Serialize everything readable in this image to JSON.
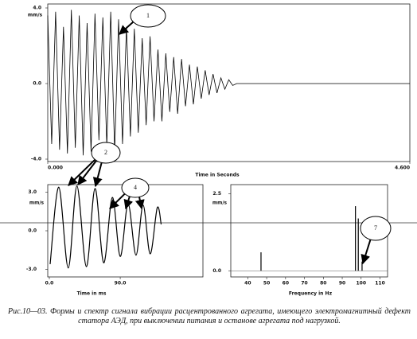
{
  "chart_data": [
    {
      "type": "line",
      "ylabel": "mm/s",
      "xlabel": "Time in Seconds",
      "annotations": [
        "1"
      ],
      "color": "#000000",
      "xlim": [
        0,
        4.6
      ],
      "xticks": [
        {
          "value": 0,
          "label": "0.000"
        },
        {
          "value": 4.6,
          "label": "4.600"
        }
      ],
      "ylim": [
        -4,
        4
      ],
      "yticks": [
        {
          "value": 4,
          "label": "4.0"
        },
        {
          "value": 0,
          "label": "0.0"
        },
        {
          "value": -4,
          "label": "-4.0"
        }
      ],
      "x": [
        0,
        0.05,
        0.1,
        0.15,
        0.2,
        0.25,
        0.3,
        0.35,
        0.4,
        0.45,
        0.5,
        0.55,
        0.6,
        0.65,
        0.7,
        0.75,
        0.8,
        0.85,
        0.9,
        0.95,
        1.0,
        1.05,
        1.1,
        1.15,
        1.2,
        1.25,
        1.3,
        1.35,
        1.4,
        1.45,
        1.5,
        1.55,
        1.6,
        1.65,
        1.7,
        1.75,
        1.8,
        1.85,
        1.9,
        1.95,
        2.0,
        2.05,
        2.1,
        2.15,
        2.2,
        2.25,
        2.3,
        2.35,
        2.4,
        4.6
      ],
      "values": [
        3.6,
        -3.2,
        3.8,
        -3.5,
        3.0,
        -3.7,
        3.9,
        -3.4,
        3.6,
        -3.8,
        3.2,
        -3.6,
        3.7,
        -3.0,
        3.5,
        -3.3,
        3.8,
        -3.6,
        3.4,
        -3.2,
        3.0,
        -2.8,
        2.9,
        -2.6,
        2.4,
        -2.2,
        2.5,
        -2.0,
        1.8,
        -2.0,
        1.6,
        -1.5,
        1.4,
        -1.6,
        1.3,
        -1.2,
        1.0,
        -1.1,
        0.9,
        -0.8,
        0.7,
        -0.6,
        0.5,
        -0.5,
        0.3,
        -0.3,
        0.2,
        -0.1,
        0,
        0
      ]
    },
    {
      "type": "line",
      "ylabel": "mm/s",
      "xlabel": "Time in ms",
      "annotations": [
        "2",
        "4"
      ],
      "color": "#000000",
      "xlim": [
        0,
        195
      ],
      "xticks": [
        {
          "value": 0,
          "label": "0.0"
        },
        {
          "value": 90,
          "label": "90.0"
        }
      ],
      "ylim": [
        -3.6,
        3.6
      ],
      "yticks": [
        {
          "value": 3,
          "label": "3.0"
        },
        {
          "value": 0,
          "label": "0.0"
        },
        {
          "value": -3,
          "label": "-3.0"
        }
      ],
      "x": [
        1,
        12,
        24,
        35,
        47,
        58,
        69,
        80,
        90,
        100,
        110,
        119,
        128,
        137,
        142
      ],
      "values": [
        -2.6,
        3.4,
        -2.9,
        3.5,
        -2.8,
        3.3,
        -2.5,
        2.6,
        -2.0,
        2.1,
        -1.9,
        2.0,
        -1.8,
        1.8,
        0.5
      ]
    },
    {
      "type": "stem",
      "ylabel": "mm/s",
      "xlabel": "Frequency in Hz",
      "annotations": [
        "7"
      ],
      "color": "#000000",
      "xlim": [
        31,
        114
      ],
      "xticks": [
        40,
        50,
        60,
        70,
        80,
        90,
        100,
        110
      ],
      "ylim": [
        -0.2,
        2.8
      ],
      "yticks": [
        {
          "value": 2.5,
          "label": "2.5"
        },
        {
          "value": 0,
          "label": "0.0"
        }
      ],
      "x": [
        47,
        97,
        98.5,
        100.5
      ],
      "values": [
        0.6,
        2.1,
        1.7,
        0.3
      ]
    }
  ],
  "caption": "Рис.10—03. Формы и спектр сигнала вибрации расцентрованного агрегата, имеющего электромагнитный дефект статора АЭД, при выключении питания и останове агрегата под нагрузкой."
}
